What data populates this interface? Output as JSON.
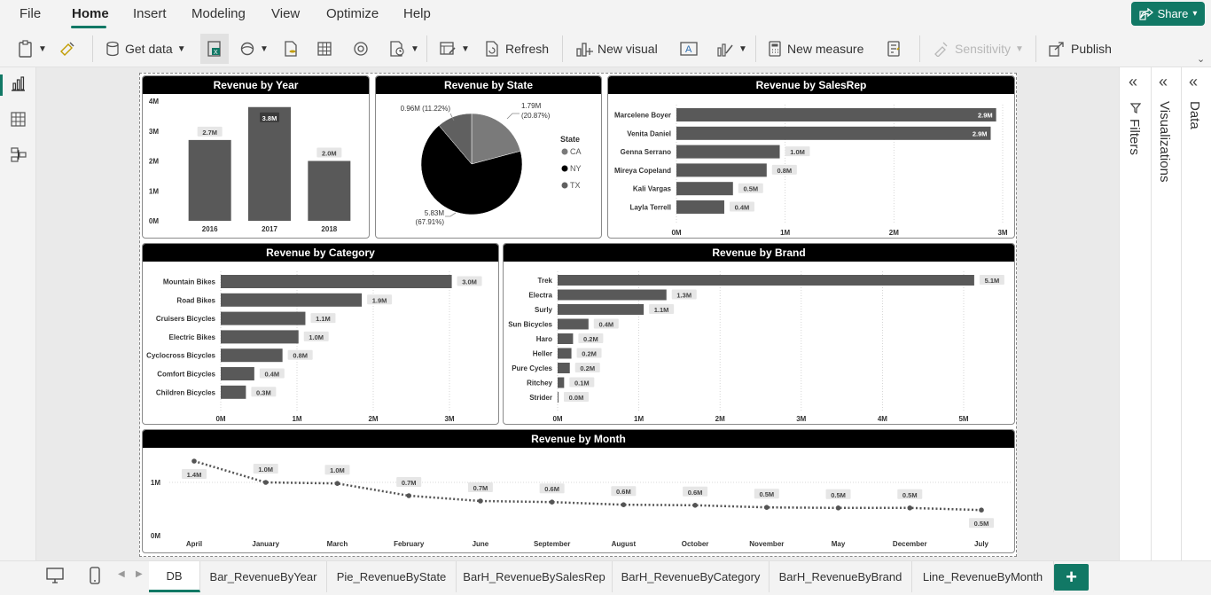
{
  "menu": {
    "tabs": [
      "File",
      "Home",
      "Insert",
      "Modeling",
      "View",
      "Optimize",
      "Help"
    ],
    "share": "Share"
  },
  "ribbon": {
    "get_data": "Get data",
    "refresh": "Refresh",
    "new_visual": "New visual",
    "new_measure": "New measure",
    "sensitivity": "Sensitivity",
    "publish": "Publish"
  },
  "panes": {
    "filters": "Filters",
    "visualizations": "Visualizations",
    "data": "Data"
  },
  "pages": {
    "tabs": [
      "DB",
      "Bar_RevenueByYear",
      "Pie_RevenueByState",
      "BarH_RevenueBySalesRep",
      "BarH_RevenueByCategory",
      "BarH_RevenueByBrand",
      "Line_RevenueByMonth"
    ],
    "active": "DB",
    "add": "+"
  },
  "colors": {
    "accent": "#117865",
    "bar": "#595959",
    "pie": [
      "#7a7a7a",
      "#000000",
      "#606060"
    ]
  },
  "chart_data": [
    {
      "type": "bar",
      "title": "Revenue by Year",
      "categories": [
        "2016",
        "2017",
        "2018"
      ],
      "values": [
        2.7,
        3.8,
        2.0
      ],
      "labels": [
        "2.7M",
        "3.8M",
        "2.0M"
      ],
      "ticks": [
        "0M",
        "1M",
        "2M",
        "3M",
        "4M"
      ],
      "ylim": [
        0,
        4
      ],
      "unit": "M"
    },
    {
      "type": "pie",
      "title": "Revenue by State",
      "legend_title": "State",
      "slices": [
        {
          "name": "CA",
          "value": 1.79,
          "label": "1.79M",
          "pct": "(20.87%)"
        },
        {
          "name": "NY",
          "value": 5.83,
          "label": "5.83M",
          "pct": "(67.91%)"
        },
        {
          "name": "TX",
          "value": 0.96,
          "label": "0.96M (11.22%)",
          "pct": ""
        }
      ]
    },
    {
      "type": "bar-horizontal",
      "title": "Revenue by SalesRep",
      "categories": [
        "Marcelene Boyer",
        "Venita Daniel",
        "Genna Serrano",
        "Mireya Copeland",
        "Kali Vargas",
        "Layla Terrell"
      ],
      "values": [
        2.94,
        2.89,
        0.95,
        0.83,
        0.52,
        0.44
      ],
      "labels": [
        "2.9M",
        "2.9M",
        "1.0M",
        "0.8M",
        "0.5M",
        "0.4M"
      ],
      "ticks": [
        "0M",
        "1M",
        "2M",
        "3M"
      ],
      "xlim": [
        0,
        3
      ]
    },
    {
      "type": "bar-horizontal",
      "title": "Revenue by Category",
      "categories": [
        "Mountain Bikes",
        "Road Bikes",
        "Cruisers Bicycles",
        "Electric Bikes",
        "Cyclocross Bicycles",
        "Comfort Bicycles",
        "Children Bicycles"
      ],
      "values": [
        3.03,
        1.85,
        1.11,
        1.02,
        0.81,
        0.44,
        0.33
      ],
      "labels": [
        "3.0M",
        "1.9M",
        "1.1M",
        "1.0M",
        "0.8M",
        "0.4M",
        "0.3M"
      ],
      "ticks": [
        "0M",
        "1M",
        "2M",
        "3M"
      ],
      "xlim": [
        0,
        3.4
      ]
    },
    {
      "type": "bar-horizontal",
      "title": "Revenue by Brand",
      "categories": [
        "Trek",
        "Electra",
        "Surly",
        "Sun Bicycles",
        "Haro",
        "Heller",
        "Pure Cycles",
        "Ritchey",
        "Strider"
      ],
      "values": [
        5.13,
        1.34,
        1.06,
        0.38,
        0.19,
        0.17,
        0.15,
        0.08,
        0.004
      ],
      "labels": [
        "5.1M",
        "1.3M",
        "1.1M",
        "0.4M",
        "0.2M",
        "0.2M",
        "0.2M",
        "0.1M",
        "0.0M"
      ],
      "ticks": [
        "0M",
        "1M",
        "2M",
        "3M",
        "4M",
        "5M"
      ],
      "xlim": [
        0,
        5.6
      ]
    },
    {
      "type": "line",
      "title": "Revenue by Month",
      "categories": [
        "April",
        "January",
        "March",
        "February",
        "June",
        "September",
        "August",
        "October",
        "November",
        "May",
        "December",
        "July"
      ],
      "values": [
        1.4,
        1.0,
        0.98,
        0.75,
        0.65,
        0.63,
        0.58,
        0.57,
        0.53,
        0.52,
        0.52,
        0.48
      ],
      "labels": [
        "1.4M",
        "1.0M",
        "1.0M",
        "0.7M",
        "0.7M",
        "0.6M",
        "0.6M",
        "0.6M",
        "0.5M",
        "0.5M",
        "0.5M",
        "0.5M"
      ],
      "ticks": [
        "0M",
        "1M"
      ],
      "ylim": [
        0,
        1.5
      ]
    }
  ]
}
